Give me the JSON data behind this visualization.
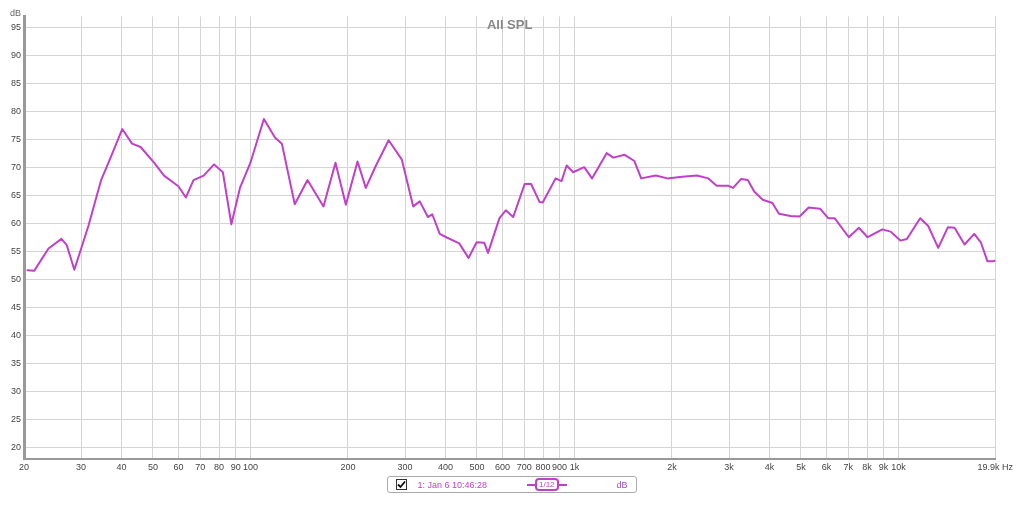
{
  "chart_data": {
    "type": "line",
    "title": "All SPL",
    "ylabel": "dB",
    "log": "x",
    "grid": true,
    "legend": "bottom",
    "xlim": [
      20,
      19900
    ],
    "ylim": [
      18,
      97
    ],
    "xticks": [
      20,
      30,
      40,
      50,
      60,
      70,
      80,
      90,
      100,
      200,
      300,
      400,
      500,
      600,
      700,
      800,
      900,
      {
        "value": 1000,
        "label": "1k"
      },
      {
        "value": 2000,
        "label": "2k"
      },
      {
        "value": 3000,
        "label": "3k"
      },
      {
        "value": 4000,
        "label": "4k"
      },
      {
        "value": 5000,
        "label": "5k"
      },
      {
        "value": 6000,
        "label": "6k"
      },
      {
        "value": 7000,
        "label": "7k"
      },
      {
        "value": 8000,
        "label": "8k"
      },
      {
        "value": 9000,
        "label": "9k"
      },
      {
        "value": 10000,
        "label": "10k"
      },
      {
        "value": 19900,
        "label": "19.9k Hz"
      }
    ],
    "yticks": [
      20,
      25,
      30,
      35,
      40,
      45,
      50,
      55,
      60,
      65,
      70,
      75,
      80,
      85,
      90,
      95
    ],
    "annotations": [
      "1/12",
      "dB"
    ],
    "series": [
      {
        "name": "1: Jan 6 10:46:28",
        "color": "#c040c8",
        "x": [
          20.5,
          21.5,
          23.8,
          26.1,
          27.1,
          28.6,
          31.6,
          34.6,
          37,
          40.2,
          43.1,
          45.8,
          50.4,
          54.1,
          59.9,
          63.2,
          66.7,
          71.7,
          77.2,
          82.2,
          87.3,
          92.8,
          100,
          110,
          119,
          125,
          137,
          150,
          168,
          183,
          197,
          214,
          227,
          244,
          267,
          293,
          318,
          333,
          353,
          364,
          384,
          402,
          441,
          471,
          499,
          527,
          541,
          587,
          614,
          647,
          702,
          735,
          780,
          798,
          875,
          912,
          946,
          991,
          1072,
          1133,
          1257,
          1318,
          1429,
          1531,
          1607,
          1783,
          1936,
          2150,
          2388,
          2590,
          2748,
          2980,
          3087,
          3272,
          3428,
          3592,
          3812,
          4083,
          4278,
          4643,
          4954,
          5285,
          5728,
          6070,
          6355,
          7030,
          7550,
          8036,
          8920,
          9460,
          10140,
          10620,
          11670,
          12360,
          13270,
          14220,
          14900,
          16000,
          17140,
          17960,
          18830,
          19500,
          19900
        ],
        "values": [
          51.7,
          51.6,
          55.6,
          57.3,
          56.2,
          51.8,
          59.6,
          67.8,
          71.8,
          76.9,
          74.3,
          73.7,
          70.9,
          68.6,
          66.7,
          64.7,
          67.8,
          68.6,
          70.6,
          69.2,
          59.9,
          66.4,
          70.9,
          78.7,
          75.4,
          74.3,
          63.5,
          67.8,
          63.1,
          70.9,
          63.4,
          71.1,
          66.4,
          70.4,
          74.9,
          71.5,
          63.1,
          64,
          61.2,
          61.7,
          58.2,
          57.6,
          56.5,
          53.9,
          56.7,
          56.6,
          54.8,
          61,
          62.4,
          61.2,
          67.1,
          67.1,
          63.9,
          63.8,
          68.1,
          67.6,
          70.4,
          69.2,
          70.1,
          68.1,
          72.6,
          71.8,
          72.3,
          71.2,
          68.1,
          68.6,
          68.1,
          68.4,
          68.6,
          68.1,
          66.8,
          66.8,
          66.4,
          68,
          67.8,
          65.7,
          64.3,
          63.7,
          61.8,
          61.4,
          61.3,
          62.9,
          62.7,
          61,
          61,
          57.6,
          59.3,
          57.6,
          59,
          58.6,
          57,
          57.3,
          61,
          59.6,
          55.7,
          59.4,
          59.3,
          56.3,
          58.2,
          56.7,
          53.3,
          53.3,
          53.4
        ]
      }
    ]
  }
}
